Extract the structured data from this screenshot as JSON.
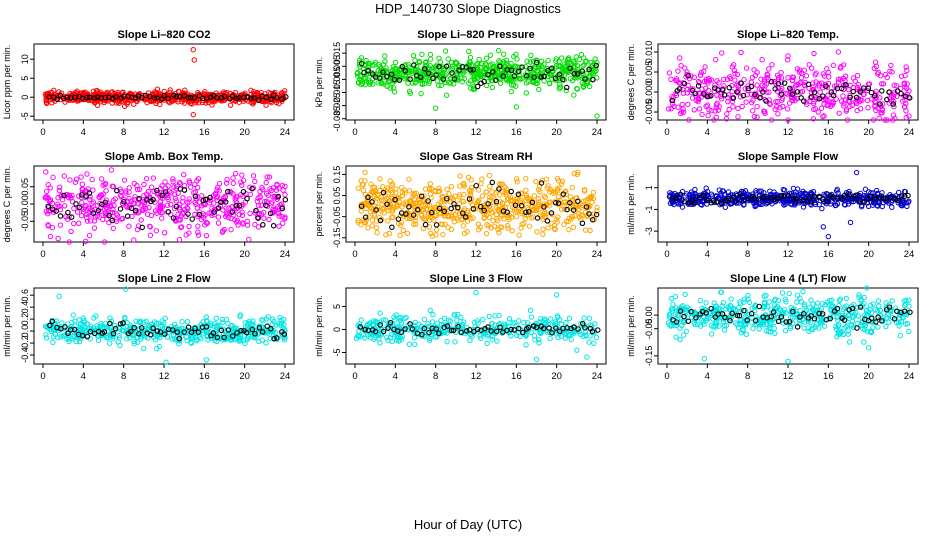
{
  "page": {
    "title": "HDP_140730  Slope Diagnostics",
    "x_caption": "Hour of Day (UTC)"
  },
  "chart_data": [
    {
      "type": "scatter",
      "title": "Slope Li–820 CO2",
      "ylabel": "Licor ppm per min.",
      "color": "#ff0000",
      "xlim": [
        0,
        24
      ],
      "xticks": [
        "0",
        "4",
        "8",
        "12",
        "16",
        "20",
        "24"
      ],
      "ylim": [
        -6,
        14
      ],
      "yticks": [
        {
          "v": -5,
          "label": "-5"
        },
        {
          "v": 0,
          "label": "0"
        },
        {
          "v": 5,
          "label": "5"
        },
        {
          "v": 10,
          "label": "10"
        }
      ],
      "n_points": 600,
      "spread": 0.8,
      "black_spread": 0.3,
      "outliers": [
        {
          "x": 14.9,
          "y": 12.5
        },
        {
          "x": 15.0,
          "y": 9.8
        },
        {
          "x": 14.9,
          "y": -4.6
        },
        {
          "x": 8.1,
          "y": -2.4
        },
        {
          "x": 18.6,
          "y": -2.1
        },
        {
          "x": 11.2,
          "y": -1.6
        }
      ]
    },
    {
      "type": "scatter",
      "title": "Slope Li–820 Pressure",
      "ylabel": "kPa per min.",
      "color": "#00dd00",
      "xlim": [
        0,
        24
      ],
      "xticks": [
        "0",
        "4",
        "8",
        "12",
        "16",
        "20",
        "24"
      ],
      "ylim": [
        -0.036,
        0.022
      ],
      "yticks": [
        {
          "v": -0.035,
          "label": "-0.035"
        },
        {
          "v": -0.025,
          "label": "-0.025"
        },
        {
          "v": -0.015,
          "label": "-0.015"
        },
        {
          "v": -0.005,
          "label": "-0.005"
        },
        {
          "v": 0.005,
          "label": "0.005"
        },
        {
          "v": 0.015,
          "label": "0.015"
        }
      ],
      "n_points": 600,
      "spread": 0.006,
      "black_spread": 0.004,
      "outliers": [
        {
          "x": 8.0,
          "y": -0.027
        },
        {
          "x": 16.0,
          "y": -0.026
        },
        {
          "x": 24.0,
          "y": -0.033
        },
        {
          "x": 11.8,
          "y": -0.012
        },
        {
          "x": 22.0,
          "y": -0.012
        }
      ]
    },
    {
      "type": "scatter",
      "title": "Slope Li–820 Temp.",
      "ylabel": "degrees C per min.",
      "color": "#ff00ff",
      "xlim": [
        0,
        24
      ],
      "xticks": [
        "0",
        "4",
        "8",
        "12",
        "16",
        "20",
        "24"
      ],
      "ylim": [
        -0.007,
        0.012
      ],
      "yticks": [
        {
          "v": -0.005,
          "label": "-0.005"
        },
        {
          "v": 0.0,
          "label": "0.000"
        },
        {
          "v": 0.005,
          "label": "0.005"
        },
        {
          "v": 0.01,
          "label": "0.010"
        }
      ],
      "n_points": 450,
      "spread": 0.0035,
      "black_spread": 0.0015,
      "outliers": [
        {
          "x": 17.0,
          "y": 0.01
        },
        {
          "x": 12.0,
          "y": 0.009
        }
      ]
    },
    {
      "type": "scatter",
      "title": "Slope Amb. Box Temp.",
      "ylabel": "degrees C per min.",
      "color": "#ff00ff",
      "xlim": [
        0,
        24
      ],
      "xticks": [
        "0",
        "4",
        "8",
        "12",
        "16",
        "20",
        "24"
      ],
      "ylim": [
        -0.11,
        0.11
      ],
      "yticks": [
        {
          "v": -0.05,
          "label": "-0.05"
        },
        {
          "v": 0.0,
          "label": "0.00"
        },
        {
          "v": 0.05,
          "label": "0.05"
        }
      ],
      "n_points": 500,
      "spread": 0.04,
      "black_spread": 0.025,
      "outliers": [
        {
          "x": 1.5,
          "y": -0.1
        }
      ]
    },
    {
      "type": "scatter",
      "title": "Slope Gas Stream RH",
      "ylabel": "percent per min.",
      "color": "#ffa500",
      "xlim": [
        0,
        24
      ],
      "xticks": [
        "0",
        "4",
        "8",
        "12",
        "16",
        "20",
        "24"
      ],
      "ylim": [
        -0.17,
        0.19
      ],
      "yticks": [
        {
          "v": -0.15,
          "label": "-0.15"
        },
        {
          "v": -0.05,
          "label": "-0.05"
        },
        {
          "v": 0.05,
          "label": "0.05"
        },
        {
          "v": 0.15,
          "label": "0.15"
        }
      ],
      "n_points": 600,
      "spread": 0.06,
      "black_spread": 0.05,
      "outliers": [
        {
          "x": 1.0,
          "y": 0.16
        },
        {
          "x": 0.6,
          "y": 0.12
        }
      ]
    },
    {
      "type": "scatter",
      "title": "Slope Sample Flow",
      "ylabel": "ml/min per min.",
      "color": "#0000cc",
      "xlim": [
        0,
        24
      ],
      "xticks": [
        "0",
        "4",
        "8",
        "12",
        "16",
        "20",
        "24"
      ],
      "ylim": [
        -4,
        3
      ],
      "yticks": [
        {
          "v": -3,
          "label": "-3"
        },
        {
          "v": -1,
          "label": "-1"
        },
        {
          "v": 1,
          "label": "1"
        }
      ],
      "n_points": 500,
      "spread": 0.35,
      "black_spread": 0.2,
      "outliers": [
        {
          "x": 16.0,
          "y": -3.5
        },
        {
          "x": 18.8,
          "y": 2.4
        },
        {
          "x": 15.5,
          "y": -2.6
        },
        {
          "x": 18.2,
          "y": -2.2
        }
      ]
    },
    {
      "type": "scatter",
      "title": "Slope Line 2 Flow",
      "ylabel": "ml/min per min.",
      "color": "#00e5e5",
      "xlim": [
        0,
        24
      ],
      "xticks": [
        "0",
        "4",
        "8",
        "12",
        "16",
        "20",
        "24"
      ],
      "ylim": [
        -0.55,
        0.72
      ],
      "yticks": [
        {
          "v": -0.4,
          "label": "-0.4"
        },
        {
          "v": -0.2,
          "label": "-0.2"
        },
        {
          "v": 0.0,
          "label": "0.0"
        },
        {
          "v": 0.2,
          "label": "0.2"
        },
        {
          "v": 0.4,
          "label": "0.4"
        },
        {
          "v": 0.6,
          "label": "0.6"
        }
      ],
      "n_points": 500,
      "spread": 0.1,
      "black_spread": 0.06,
      "outliers": [
        {
          "x": 8.2,
          "y": 0.7
        },
        {
          "x": 16.2,
          "y": -0.48
        },
        {
          "x": 12.2,
          "y": -0.52
        },
        {
          "x": 1.6,
          "y": 0.58
        }
      ]
    },
    {
      "type": "scatter",
      "title": "Slope Line 3 Flow",
      "ylabel": "ml/min per min.",
      "color": "#00e5e5",
      "xlim": [
        0,
        24
      ],
      "xticks": [
        "0",
        "4",
        "8",
        "12",
        "16",
        "20",
        "24"
      ],
      "ylim": [
        -7.5,
        9
      ],
      "yticks": [
        {
          "v": -5,
          "label": "-5"
        },
        {
          "v": 0,
          "label": "0"
        },
        {
          "v": 5,
          "label": "5"
        }
      ],
      "n_points": 380,
      "spread": 1.4,
      "black_spread": 0.6,
      "outliers": [
        {
          "x": 12.0,
          "y": 8
        },
        {
          "x": 20.0,
          "y": 7.5
        },
        {
          "x": 22.0,
          "y": -4.5
        },
        {
          "x": 23.0,
          "y": -6
        },
        {
          "x": 18.0,
          "y": -6.5
        }
      ]
    },
    {
      "type": "scatter",
      "title": "Slope Line 4 (LT) Flow",
      "ylabel": "ml/min per min.",
      "color": "#00e5e5",
      "xlim": [
        0,
        24
      ],
      "xticks": [
        "0",
        "4",
        "8",
        "12",
        "16",
        "20",
        "24"
      ],
      "ylim": [
        -0.18,
        0.1
      ],
      "yticks": [
        {
          "v": -0.15,
          "label": "-0.15"
        },
        {
          "v": -0.05,
          "label": "-0.05"
        },
        {
          "v": 0.0,
          "label": "0.00"
        }
      ],
      "n_points": 500,
      "spread": 0.035,
      "black_spread": 0.02,
      "outliers": [
        {
          "x": 3.7,
          "y": -0.16
        },
        {
          "x": 12.0,
          "y": -0.17
        },
        {
          "x": 20.0,
          "y": -0.12
        },
        {
          "x": 1.3,
          "y": -0.09
        }
      ]
    }
  ]
}
